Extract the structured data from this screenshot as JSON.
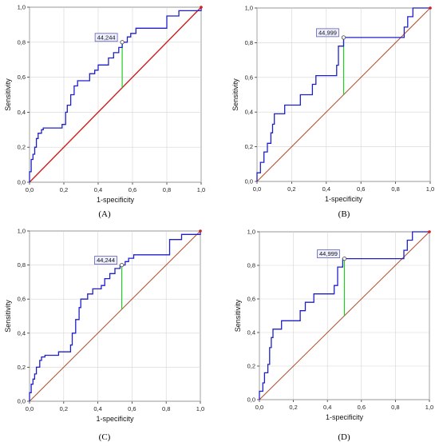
{
  "chart_data": [
    {
      "type": "line",
      "panel_label": "(A)",
      "xlabel": "1-specificity",
      "ylabel": "Sensitivity",
      "xlim": [
        0,
        1
      ],
      "ylim": [
        0,
        1
      ],
      "xticks": [
        "0,0",
        "0,2",
        "0,4",
        "0,6",
        "0,8",
        "1,0"
      ],
      "yticks": [
        "0,0",
        "0,2",
        "0,4",
        "0,6",
        "0,8",
        "1,0"
      ],
      "grid": true,
      "cutoff_label": "44,244",
      "cutoff_point": {
        "x": 0.54,
        "y": 0.8
      },
      "colors": {
        "roc": "#1f1fc8",
        "diagonal": "#cc1f1f",
        "cutoff": "#22cc22"
      },
      "series": [
        {
          "values": [
            [
              0,
              0
            ],
            [
              0,
              0.06
            ],
            [
              0.01,
              0.06
            ],
            [
              0.01,
              0.13
            ],
            [
              0.02,
              0.13
            ],
            [
              0.02,
              0.16
            ],
            [
              0.03,
              0.16
            ],
            [
              0.03,
              0.2
            ],
            [
              0.04,
              0.2
            ],
            [
              0.04,
              0.25
            ],
            [
              0.05,
              0.25
            ],
            [
              0.05,
              0.28
            ],
            [
              0.07,
              0.28
            ],
            [
              0.07,
              0.3
            ],
            [
              0.08,
              0.3
            ],
            [
              0.08,
              0.31
            ],
            [
              0.19,
              0.31
            ],
            [
              0.19,
              0.33
            ],
            [
              0.21,
              0.33
            ],
            [
              0.21,
              0.4
            ],
            [
              0.22,
              0.4
            ],
            [
              0.22,
              0.44
            ],
            [
              0.24,
              0.44
            ],
            [
              0.24,
              0.5
            ],
            [
              0.26,
              0.5
            ],
            [
              0.26,
              0.55
            ],
            [
              0.28,
              0.55
            ],
            [
              0.28,
              0.58
            ],
            [
              0.35,
              0.58
            ],
            [
              0.35,
              0.62
            ],
            [
              0.38,
              0.62
            ],
            [
              0.38,
              0.64
            ],
            [
              0.4,
              0.64
            ],
            [
              0.4,
              0.67
            ],
            [
              0.46,
              0.67
            ],
            [
              0.46,
              0.71
            ],
            [
              0.49,
              0.71
            ],
            [
              0.49,
              0.74
            ],
            [
              0.52,
              0.74
            ],
            [
              0.52,
              0.77
            ],
            [
              0.54,
              0.77
            ],
            [
              0.54,
              0.8
            ],
            [
              0.57,
              0.8
            ],
            [
              0.57,
              0.83
            ],
            [
              0.59,
              0.83
            ],
            [
              0.59,
              0.85
            ],
            [
              0.62,
              0.85
            ],
            [
              0.62,
              0.88
            ],
            [
              0.8,
              0.88
            ],
            [
              0.8,
              0.95
            ],
            [
              0.87,
              0.95
            ],
            [
              0.87,
              0.98
            ],
            [
              1.0,
              0.98
            ],
            [
              1.0,
              1.0
            ]
          ]
        },
        {
          "values": [
            [
              0,
              0
            ],
            [
              1,
              1
            ]
          ]
        }
      ]
    },
    {
      "type": "line",
      "panel_label": "(B)",
      "xlabel": "1-specificity",
      "ylabel": "Sensitivity",
      "xlim": [
        0,
        1
      ],
      "ylim": [
        0,
        1
      ],
      "xticks": [
        "0,0",
        "0,2",
        "0,4",
        "0,6",
        "0,8",
        "1,0"
      ],
      "yticks": [
        "0,0",
        "0,2",
        "0,4",
        "0,6",
        "0,8",
        "1,0"
      ],
      "grid": true,
      "cutoff_label": "44,999",
      "cutoff_point": {
        "x": 0.5,
        "y": 0.83
      },
      "colors": {
        "roc": "#1f1fc8",
        "diagonal": "#b34a2a",
        "cutoff": "#22cc22"
      },
      "series": [
        {
          "values": [
            [
              0,
              0
            ],
            [
              0,
              0.05
            ],
            [
              0.02,
              0.05
            ],
            [
              0.02,
              0.11
            ],
            [
              0.04,
              0.11
            ],
            [
              0.04,
              0.17
            ],
            [
              0.06,
              0.17
            ],
            [
              0.06,
              0.22
            ],
            [
              0.08,
              0.22
            ],
            [
              0.08,
              0.28
            ],
            [
              0.09,
              0.28
            ],
            [
              0.09,
              0.33
            ],
            [
              0.1,
              0.33
            ],
            [
              0.1,
              0.39
            ],
            [
              0.16,
              0.39
            ],
            [
              0.16,
              0.44
            ],
            [
              0.25,
              0.44
            ],
            [
              0.25,
              0.5
            ],
            [
              0.32,
              0.5
            ],
            [
              0.32,
              0.56
            ],
            [
              0.34,
              0.56
            ],
            [
              0.34,
              0.61
            ],
            [
              0.46,
              0.61
            ],
            [
              0.46,
              0.67
            ],
            [
              0.47,
              0.67
            ],
            [
              0.47,
              0.78
            ],
            [
              0.5,
              0.78
            ],
            [
              0.5,
              0.83
            ],
            [
              0.85,
              0.83
            ],
            [
              0.85,
              0.89
            ],
            [
              0.87,
              0.89
            ],
            [
              0.87,
              0.95
            ],
            [
              0.9,
              0.95
            ],
            [
              0.9,
              1.0
            ],
            [
              1.0,
              1.0
            ]
          ]
        },
        {
          "values": [
            [
              0,
              0
            ],
            [
              1,
              1
            ]
          ]
        }
      ]
    },
    {
      "type": "line",
      "panel_label": "(C)",
      "xlabel": "1-specificity",
      "ylabel": "Sensitivity",
      "xlim": [
        0,
        1
      ],
      "ylim": [
        0,
        1
      ],
      "xticks": [
        "0,0",
        "0,2",
        "0,4",
        "0,6",
        "0,8",
        "1,0"
      ],
      "yticks": [
        "0,0",
        "0,2",
        "0,4",
        "0,6",
        "0,8",
        "1,0"
      ],
      "grid": true,
      "cutoff_label": "44,244",
      "cutoff_point": {
        "x": 0.54,
        "y": 0.8
      },
      "colors": {
        "roc": "#1f1fc8",
        "diagonal": "#b34a2a",
        "cutoff": "#22cc22"
      },
      "series": [
        {
          "values": [
            [
              0,
              0
            ],
            [
              0,
              0.05
            ],
            [
              0.01,
              0.05
            ],
            [
              0.01,
              0.1
            ],
            [
              0.02,
              0.1
            ],
            [
              0.02,
              0.13
            ],
            [
              0.03,
              0.13
            ],
            [
              0.03,
              0.16
            ],
            [
              0.04,
              0.16
            ],
            [
              0.04,
              0.2
            ],
            [
              0.06,
              0.2
            ],
            [
              0.06,
              0.24
            ],
            [
              0.07,
              0.24
            ],
            [
              0.07,
              0.26
            ],
            [
              0.09,
              0.26
            ],
            [
              0.09,
              0.27
            ],
            [
              0.17,
              0.27
            ],
            [
              0.17,
              0.29
            ],
            [
              0.24,
              0.29
            ],
            [
              0.24,
              0.33
            ],
            [
              0.25,
              0.33
            ],
            [
              0.25,
              0.4
            ],
            [
              0.27,
              0.4
            ],
            [
              0.27,
              0.48
            ],
            [
              0.29,
              0.48
            ],
            [
              0.29,
              0.55
            ],
            [
              0.3,
              0.55
            ],
            [
              0.3,
              0.6
            ],
            [
              0.34,
              0.6
            ],
            [
              0.34,
              0.63
            ],
            [
              0.37,
              0.63
            ],
            [
              0.37,
              0.66
            ],
            [
              0.42,
              0.66
            ],
            [
              0.42,
              0.68
            ],
            [
              0.44,
              0.68
            ],
            [
              0.44,
              0.72
            ],
            [
              0.47,
              0.72
            ],
            [
              0.47,
              0.75
            ],
            [
              0.5,
              0.75
            ],
            [
              0.5,
              0.78
            ],
            [
              0.53,
              0.78
            ],
            [
              0.53,
              0.8
            ],
            [
              0.56,
              0.8
            ],
            [
              0.56,
              0.82
            ],
            [
              0.58,
              0.82
            ],
            [
              0.58,
              0.84
            ],
            [
              0.61,
              0.84
            ],
            [
              0.61,
              0.86
            ],
            [
              0.82,
              0.86
            ],
            [
              0.82,
              0.95
            ],
            [
              0.89,
              0.95
            ],
            [
              0.89,
              0.98
            ],
            [
              1.0,
              0.98
            ],
            [
              1.0,
              1.0
            ]
          ]
        },
        {
          "values": [
            [
              0,
              0
            ],
            [
              1,
              1
            ]
          ]
        }
      ]
    },
    {
      "type": "line",
      "panel_label": "(D)",
      "xlabel": "1-specificity",
      "ylabel": "Sensitivity",
      "xlim": [
        0,
        1
      ],
      "ylim": [
        0,
        1
      ],
      "xticks": [
        "0,0",
        "0,2",
        "0,4",
        "0,6",
        "0,8",
        "1,0"
      ],
      "yticks": [
        "0,0",
        "0,2",
        "0,4",
        "0,6",
        "0,8",
        "1,0"
      ],
      "grid": true,
      "cutoff_label": "44,999",
      "cutoff_point": {
        "x": 0.5,
        "y": 0.84
      },
      "colors": {
        "roc": "#1f1fc8",
        "diagonal": "#b34a2a",
        "cutoff": "#22cc22"
      },
      "series": [
        {
          "values": [
            [
              0,
              0
            ],
            [
              0,
              0.05
            ],
            [
              0.02,
              0.05
            ],
            [
              0.02,
              0.1
            ],
            [
              0.03,
              0.1
            ],
            [
              0.03,
              0.16
            ],
            [
              0.05,
              0.16
            ],
            [
              0.05,
              0.21
            ],
            [
              0.06,
              0.21
            ],
            [
              0.06,
              0.31
            ],
            [
              0.07,
              0.31
            ],
            [
              0.07,
              0.37
            ],
            [
              0.08,
              0.37
            ],
            [
              0.08,
              0.42
            ],
            [
              0.13,
              0.42
            ],
            [
              0.13,
              0.47
            ],
            [
              0.24,
              0.47
            ],
            [
              0.24,
              0.53
            ],
            [
              0.27,
              0.53
            ],
            [
              0.27,
              0.58
            ],
            [
              0.32,
              0.58
            ],
            [
              0.32,
              0.63
            ],
            [
              0.44,
              0.63
            ],
            [
              0.44,
              0.68
            ],
            [
              0.46,
              0.68
            ],
            [
              0.46,
              0.79
            ],
            [
              0.49,
              0.79
            ],
            [
              0.49,
              0.84
            ],
            [
              0.85,
              0.84
            ],
            [
              0.85,
              0.89
            ],
            [
              0.87,
              0.89
            ],
            [
              0.87,
              0.95
            ],
            [
              0.9,
              0.95
            ],
            [
              0.9,
              1.0
            ],
            [
              1.0,
              1.0
            ]
          ]
        },
        {
          "values": [
            [
              0,
              0
            ],
            [
              1,
              1
            ]
          ]
        }
      ]
    }
  ]
}
